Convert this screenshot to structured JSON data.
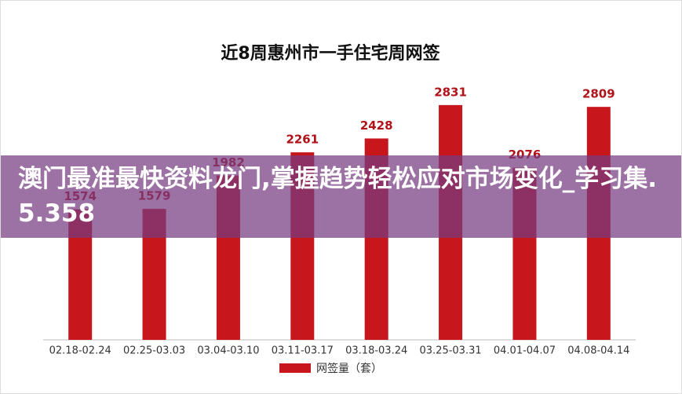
{
  "chart_data": {
    "type": "bar",
    "title": "近8周惠州市一手住宅周网签",
    "categories": [
      "02.18-02.24",
      "02.25-03.03",
      "03.04-03.10",
      "03.11-03.17",
      "03.18-03.24",
      "03.25-03.31",
      "04.01-04.07",
      "04.08-04.14"
    ],
    "series": [
      {
        "name": "网签量（套）",
        "color": "#c8161d",
        "values": [
          1574,
          1579,
          1982,
          2261,
          2428,
          2831,
          2076,
          2809
        ]
      }
    ],
    "ylim": [
      0,
      3000
    ],
    "legend": "bottom"
  },
  "banner": "澳门最准最快资料龙门,掌握趋势轻松应对市场变化_学习集.5.358"
}
